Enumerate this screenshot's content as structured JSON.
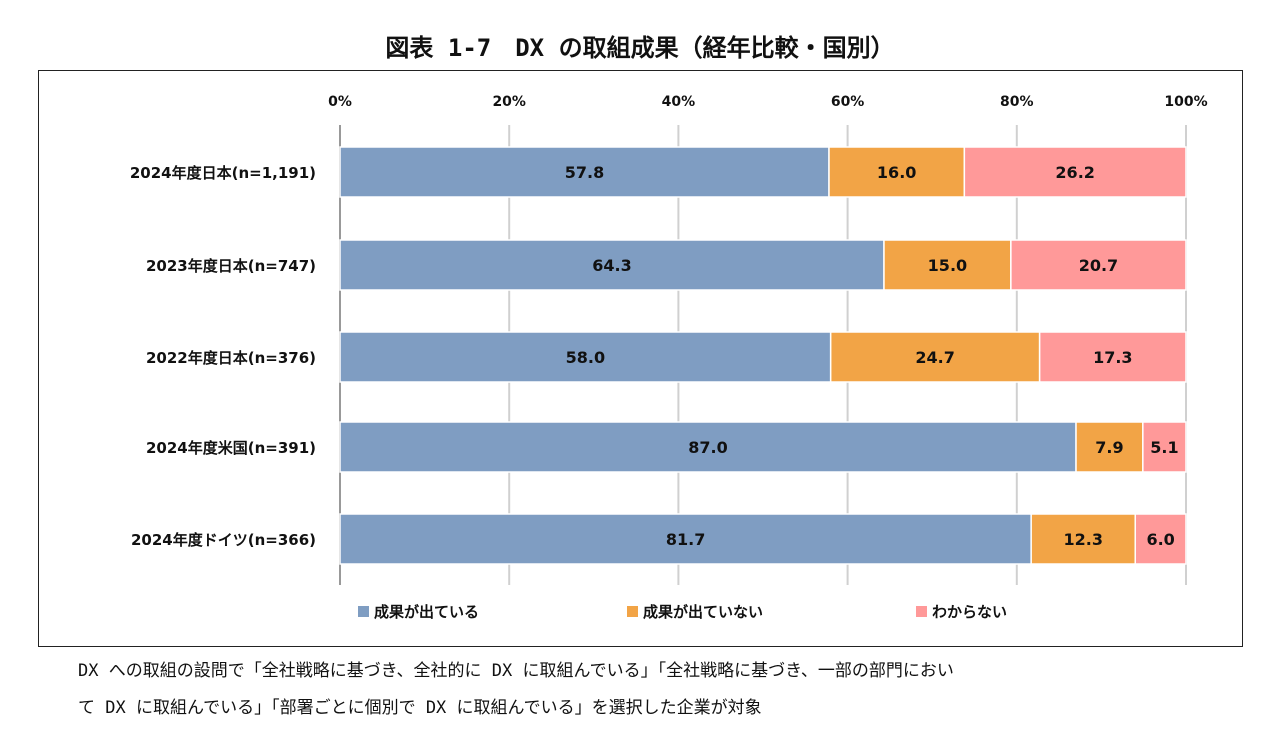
{
  "chart_data": {
    "type": "bar",
    "stacked": true,
    "orientation": "horizontal",
    "title": "図表 1-7　DX の取組成果（経年比較・国別）",
    "categories": [
      "2024年度日本(n=1,191)",
      "2023年度日本(n=747)",
      "2022年度日本(n=376)",
      "2024年度米国(n=391)",
      "2024年度ドイツ(n=366)"
    ],
    "series": [
      {
        "name": "成果が出ている",
        "color": "#7f9dc2",
        "values": [
          57.8,
          64.3,
          58.0,
          87.0,
          81.7
        ]
      },
      {
        "name": "成果が出ていない",
        "color": "#f2a446",
        "values": [
          16.0,
          15.0,
          24.7,
          7.9,
          12.3
        ]
      },
      {
        "name": "わからない",
        "color": "#ff9999",
        "values": [
          26.2,
          20.7,
          17.3,
          5.1,
          6.0
        ]
      }
    ],
    "xlim": [
      0,
      100
    ],
    "xticks": [
      "0%",
      "20%",
      "40%",
      "60%",
      "80%",
      "100%"
    ],
    "grid": true,
    "legend": "bottom"
  },
  "footnote": [
    "DX への取組の設問で「全社戦略に基づき、全社的に DX に取組んでいる」「全社戦略に基づき、一部の部門におい",
    "て DX に取組んでいる」「部署ごとに個別で DX に取組んでいる」を選択した企業が対象"
  ]
}
